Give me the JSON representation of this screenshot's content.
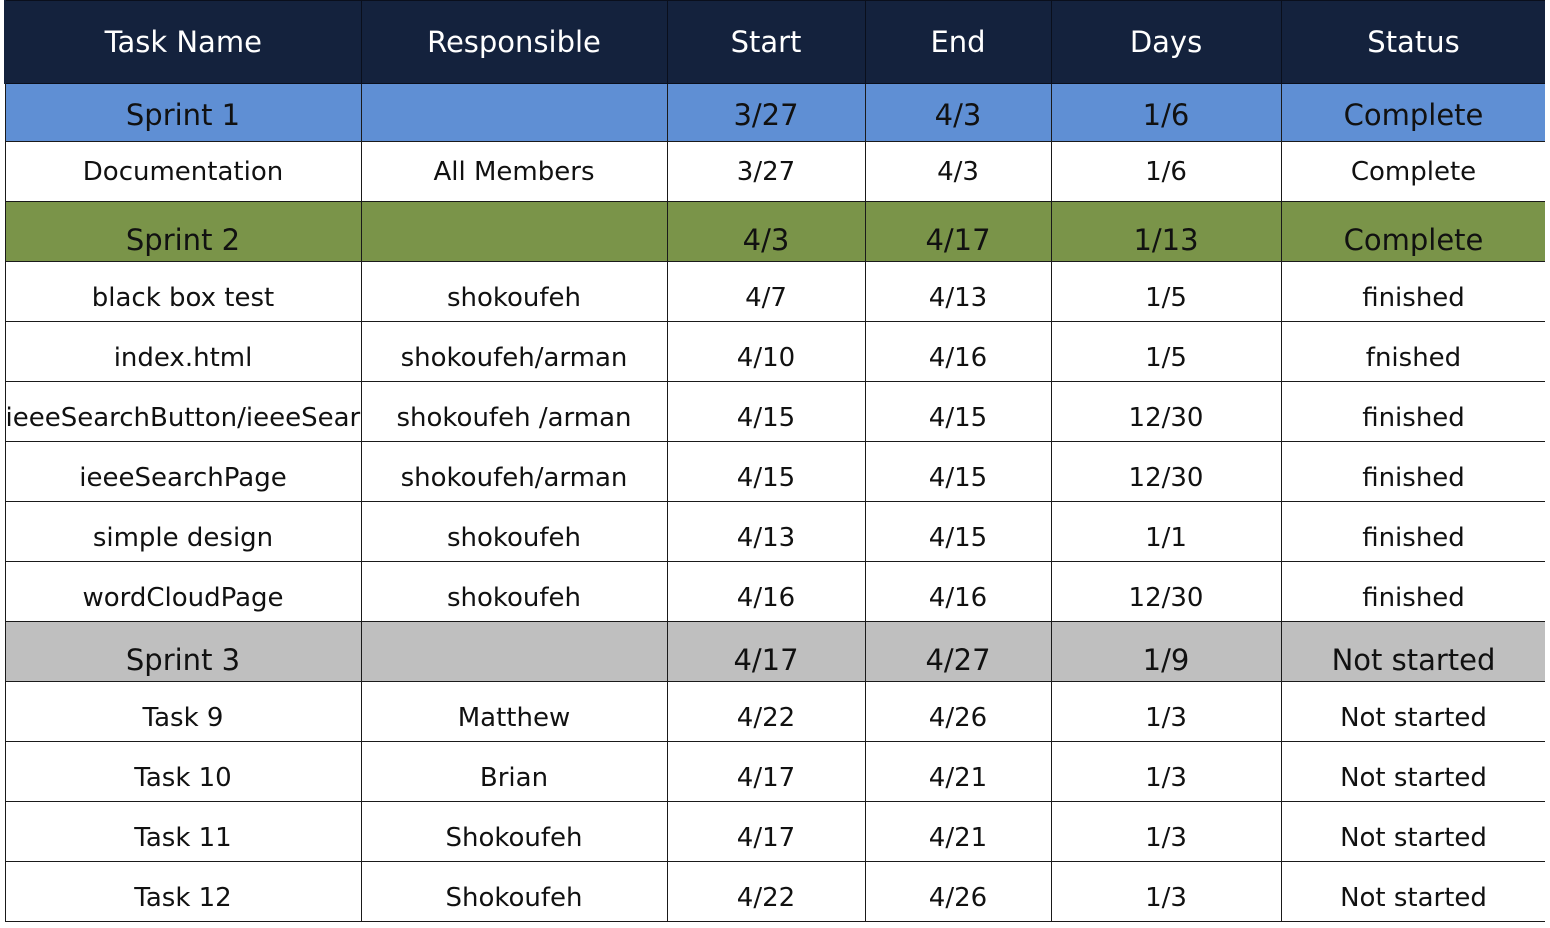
{
  "columns": [
    "Task Name",
    "Responsible",
    "Start",
    "End",
    "Days",
    "Status"
  ],
  "rows": [
    {
      "type": "sprint",
      "variant": "s1",
      "task": "Sprint 1",
      "responsible": "",
      "start": "3/27",
      "end": "4/3",
      "days": "1/6",
      "status": "Complete"
    },
    {
      "type": "task",
      "task": "Documentation",
      "responsible": "All Members",
      "start": "3/27",
      "end": "4/3",
      "days": "1/6",
      "status": "Complete"
    },
    {
      "type": "sprint",
      "variant": "s2",
      "task": "Sprint 2",
      "responsible": "",
      "start": "4/3",
      "end": "4/17",
      "days": "1/13",
      "status": "Complete"
    },
    {
      "type": "task",
      "task": "black box test",
      "responsible": "shokoufeh",
      "start": "4/7",
      "end": "4/13",
      "days": "1/5",
      "status": "finished"
    },
    {
      "type": "task",
      "task": "index.html",
      "responsible": "shokoufeh/arman",
      "start": "4/10",
      "end": "4/16",
      "days": "1/5",
      "status": "fnished"
    },
    {
      "type": "task",
      "task": "ieeeSearchButton/ieeeSearchBar",
      "responsible": "shokoufeh /arman",
      "start": "4/15",
      "end": "4/15",
      "days": "12/30",
      "status": "finished"
    },
    {
      "type": "task",
      "task": "ieeeSearchPage",
      "responsible": "shokoufeh/arman",
      "start": "4/15",
      "end": "4/15",
      "days": "12/30",
      "status": "finished"
    },
    {
      "type": "task",
      "task": "simple design",
      "responsible": "shokoufeh",
      "start": "4/13",
      "end": "4/15",
      "days": "1/1",
      "status": "finished"
    },
    {
      "type": "task",
      "task": "wordCloudPage",
      "responsible": "shokoufeh",
      "start": "4/16",
      "end": "4/16",
      "days": "12/30",
      "status": "finished"
    },
    {
      "type": "sprint",
      "variant": "s3",
      "task": "Sprint 3",
      "responsible": "",
      "start": "4/17",
      "end": "4/27",
      "days": "1/9",
      "status": "Not started"
    },
    {
      "type": "task",
      "task": "Task 9",
      "responsible": "Matthew",
      "start": "4/22",
      "end": "4/26",
      "days": "1/3",
      "status": "Not started"
    },
    {
      "type": "task",
      "task": "Task 10",
      "responsible": "Brian",
      "start": "4/17",
      "end": "4/21",
      "days": "1/3",
      "status": "Not started"
    },
    {
      "type": "task",
      "task": "Task 11",
      "responsible": "Shokoufeh",
      "start": "4/17",
      "end": "4/21",
      "days": "1/3",
      "status": "Not started"
    },
    {
      "type": "task",
      "task": "Task 12",
      "responsible": "Shokoufeh",
      "start": "4/22",
      "end": "4/26",
      "days": "1/3",
      "status": "Not started"
    }
  ],
  "colors": {
    "header": "#14223d",
    "sprint_1": "#5f8fd4",
    "sprint_2": "#7a9449",
    "sprint_3": "#bfbfbf"
  }
}
